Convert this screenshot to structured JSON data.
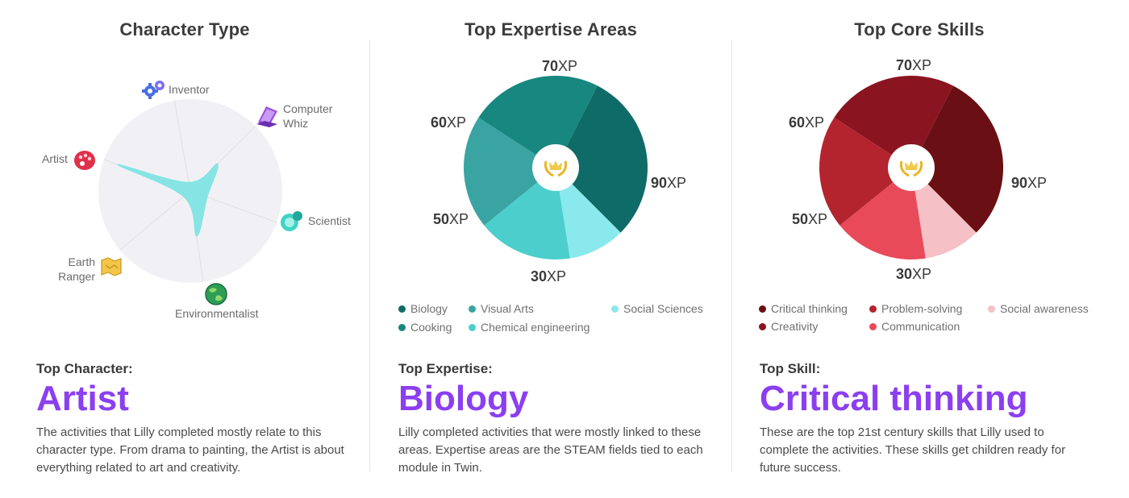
{
  "character_panel": {
    "title": "Character Type",
    "axes": [
      {
        "label": "Inventor",
        "icon": "gears-icon"
      },
      {
        "label": "Computer\nWhiz",
        "icon": "laptop-icon"
      },
      {
        "label": "Scientist",
        "icon": "flask-icon"
      },
      {
        "label": "Environmentalist",
        "icon": "globe-icon"
      },
      {
        "label": "Earth\nRanger",
        "icon": "map-icon"
      },
      {
        "label": "Artist",
        "icon": "palette-icon"
      }
    ],
    "top_label": "Top Character:",
    "top_value": "Artist",
    "description": "The activities that Lilly completed mostly relate to this character type. From drama to painting, the Artist is about everything related to art and creativity."
  },
  "expertise_panel": {
    "title": "Top Expertise Areas",
    "unit": "XP",
    "legend": [
      {
        "label": "Biology",
        "color": "#0f6b67"
      },
      {
        "label": "Visual Arts",
        "color": "#3aa4a3"
      },
      {
        "label": "Social Sciences",
        "color": "#8ae9ec"
      },
      {
        "label": "Cooking",
        "color": "#17877f"
      },
      {
        "label": "Chemical engineering",
        "color": "#4ccfcc"
      }
    ],
    "center_icon": "laurel-trophy-icon",
    "top_label": "Top Expertise:",
    "top_value": "Biology",
    "description": "Lilly completed activities that were mostly linked to these areas. Expertise areas are the STEAM fields tied to each module in Twin."
  },
  "skills_panel": {
    "title": "Top Core Skills",
    "unit": "XP",
    "legend": [
      {
        "label": "Critical thinking",
        "color": "#6a1014"
      },
      {
        "label": "Problem-solving",
        "color": "#b3242f"
      },
      {
        "label": "Social awareness",
        "color": "#f5c1c6"
      },
      {
        "label": "Creativity",
        "color": "#8a1420"
      },
      {
        "label": "Communication",
        "color": "#e84a5a"
      }
    ],
    "center_icon": "laurel-trophy-icon",
    "top_label": "Top Skill:",
    "top_value": "Critical thinking",
    "description": "These are the top 21st century skills that Lilly used to complete the activities. These skills get children ready for future success."
  },
  "chart_data": [
    {
      "type": "radar",
      "title": "Character Type",
      "categories": [
        "Inventor",
        "Computer Whiz",
        "Scientist",
        "Environmentalist",
        "Earth Ranger",
        "Artist"
      ],
      "values": [
        0.1,
        0.42,
        0.2,
        0.5,
        0.1,
        0.85
      ],
      "max": 1,
      "color": "#7de3e3"
    },
    {
      "type": "pie",
      "title": "Top Expertise Areas",
      "labels": [
        "Biology",
        "Social Sciences",
        "Chemical engineering",
        "Visual Arts",
        "Cooking"
      ],
      "values": [
        90,
        30,
        50,
        60,
        70
      ],
      "colors": [
        "#0f6b67",
        "#8ae9ec",
        "#4ccfcc",
        "#3aa4a3",
        "#17877f"
      ],
      "unit": "XP"
    },
    {
      "type": "pie",
      "title": "Top Core Skills",
      "labels": [
        "Critical thinking",
        "Social awareness",
        "Communication",
        "Problem-solving",
        "Creativity"
      ],
      "values": [
        90,
        30,
        50,
        60,
        70
      ],
      "colors": [
        "#6a1014",
        "#f5c1c6",
        "#e84a5a",
        "#b3242f",
        "#8a1420"
      ],
      "unit": "XP"
    }
  ]
}
